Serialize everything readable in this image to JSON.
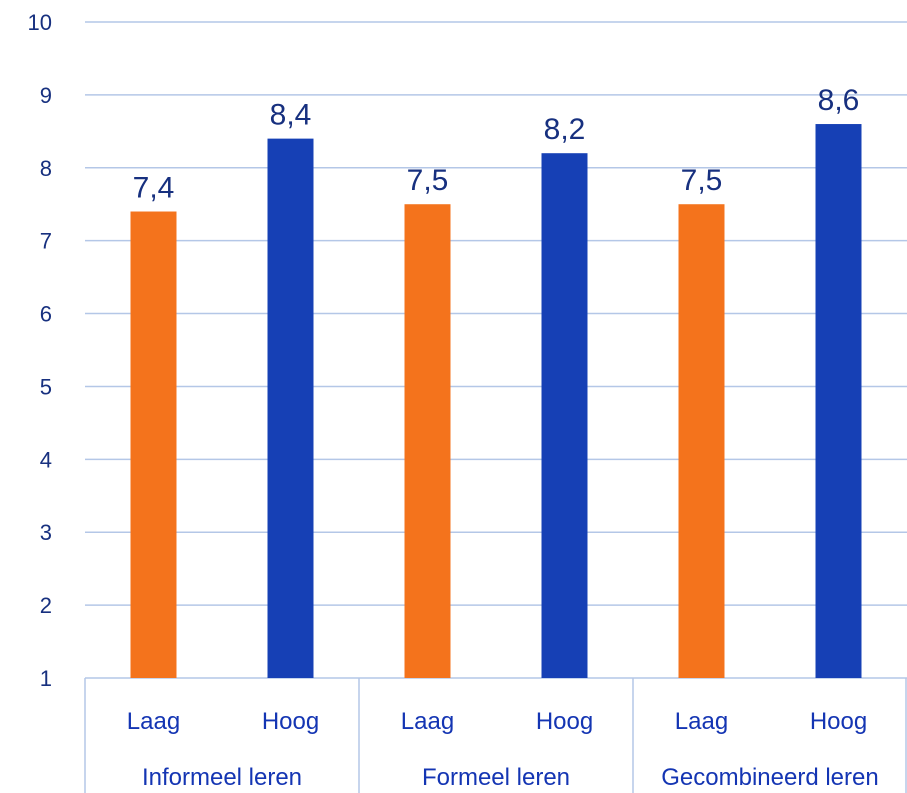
{
  "chart_data": {
    "type": "bar",
    "title": "",
    "xlabel": "",
    "ylabel": "",
    "ylim": [
      1,
      10
    ],
    "yticks": [
      "1",
      "2",
      "3",
      "4",
      "5",
      "6",
      "7",
      "8",
      "9",
      "10"
    ],
    "grid": true,
    "legend": "none",
    "groups": [
      "Informeel leren",
      "Formeel leren",
      "Gecombineerd leren"
    ],
    "subcategories": [
      "Laag",
      "Hoog"
    ],
    "bars": [
      {
        "group": "Informeel leren",
        "category": "Laag",
        "value": 7.4,
        "label": "7,4",
        "color": "#f4731c"
      },
      {
        "group": "Informeel leren",
        "category": "Hoog",
        "value": 8.4,
        "label": "8,4",
        "color": "#1640b5"
      },
      {
        "group": "Formeel leren",
        "category": "Laag",
        "value": 7.5,
        "label": "7,5",
        "color": "#f4731c"
      },
      {
        "group": "Formeel leren",
        "category": "Hoog",
        "value": 8.2,
        "label": "8,2",
        "color": "#1640b5"
      },
      {
        "group": "Gecombineerd leren",
        "category": "Laag",
        "value": 7.5,
        "label": "7,5",
        "color": "#f4731c"
      },
      {
        "group": "Gecombineerd leren",
        "category": "Hoog",
        "value": 8.6,
        "label": "8,6",
        "color": "#1640b5"
      }
    ]
  }
}
